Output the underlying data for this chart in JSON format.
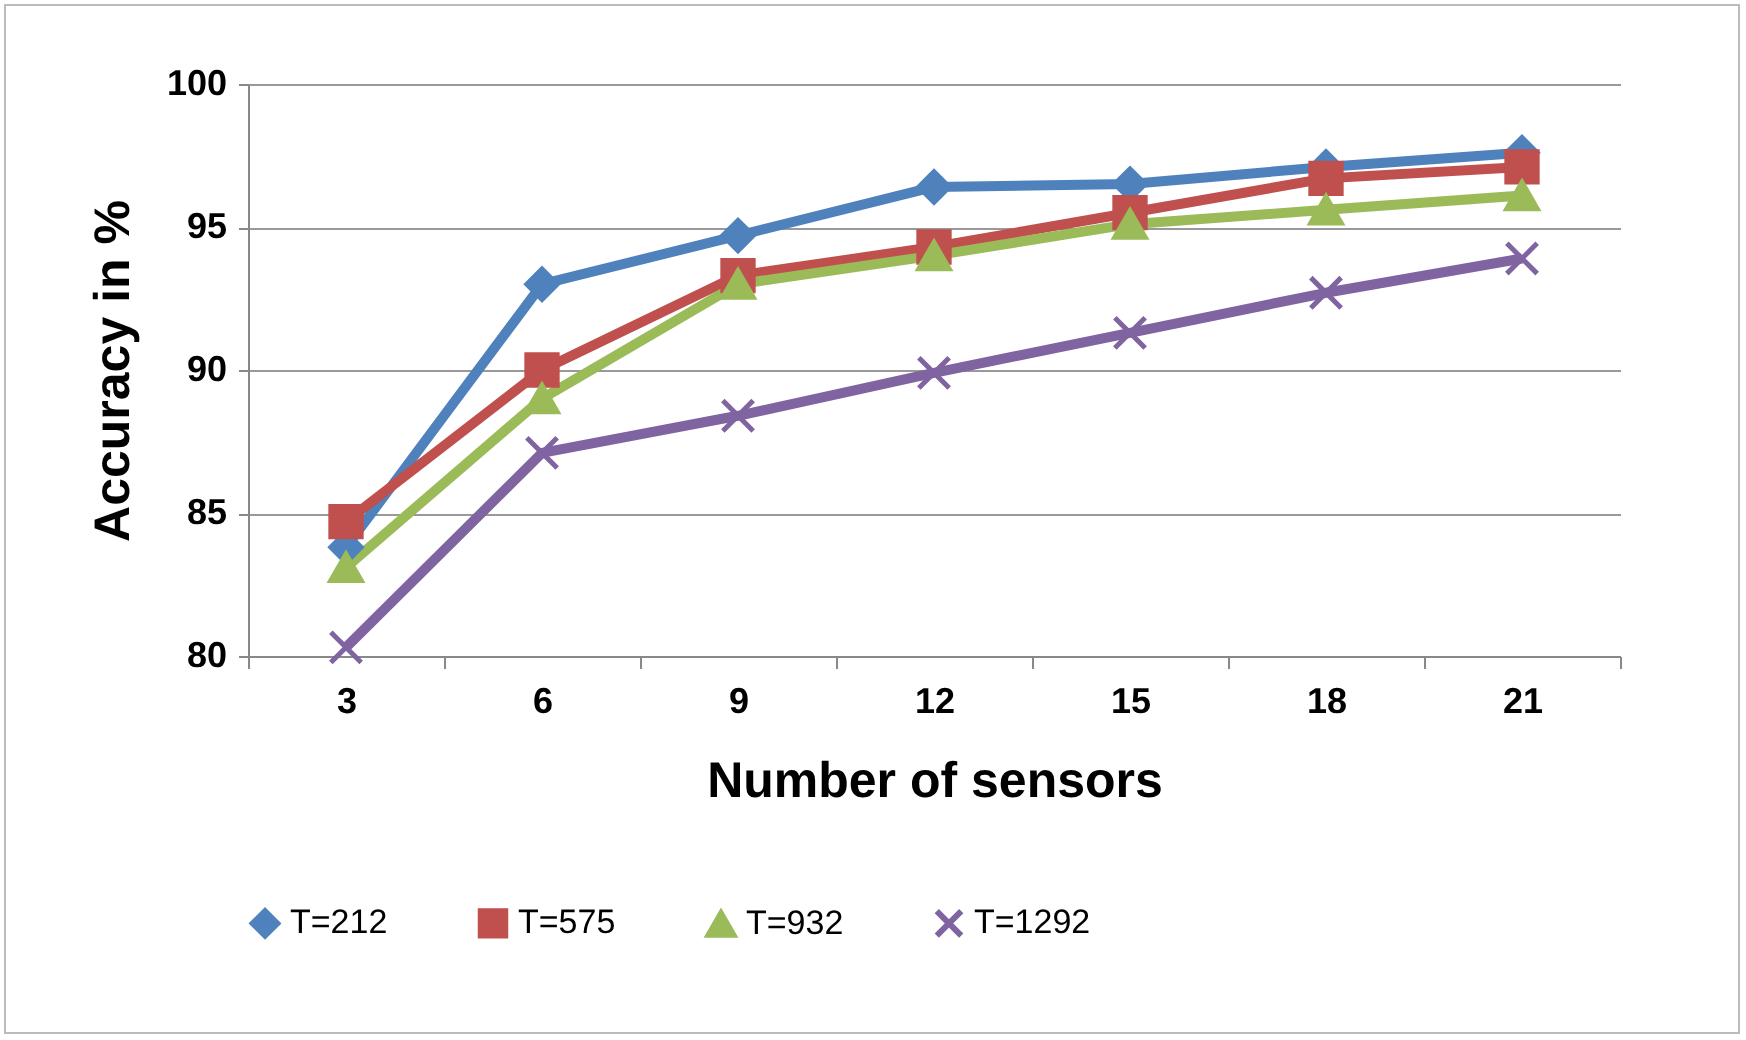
{
  "chart_data": {
    "type": "line",
    "xlabel": "Number of sensors",
    "ylabel": "Accuracy in %",
    "categories": [
      "3",
      "6",
      "9",
      "12",
      "15",
      "18",
      "21"
    ],
    "ylim": [
      80,
      100
    ],
    "yticks": [
      80,
      85,
      90,
      95,
      100
    ],
    "grid": "y",
    "legend": "bottom",
    "line_style": "solid",
    "series": [
      {
        "name": "T=212",
        "color": "#4f81bd",
        "marker": "diamond",
        "values": [
          83.8,
          93.0,
          94.7,
          96.4,
          96.5,
          97.1,
          97.6
        ]
      },
      {
        "name": "T=575",
        "color": "#c0504d",
        "marker": "square",
        "values": [
          84.7,
          90.0,
          93.3,
          94.3,
          95.5,
          96.7,
          97.1
        ]
      },
      {
        "name": "T=932",
        "color": "#9bbb59",
        "marker": "triangle",
        "values": [
          83.1,
          89.0,
          93.0,
          94.0,
          95.1,
          95.6,
          96.1
        ]
      },
      {
        "name": "T=1292",
        "color": "#8064a2",
        "marker": "cross",
        "values": [
          80.3,
          87.1,
          88.4,
          89.9,
          91.3,
          92.7,
          93.9
        ]
      }
    ]
  }
}
